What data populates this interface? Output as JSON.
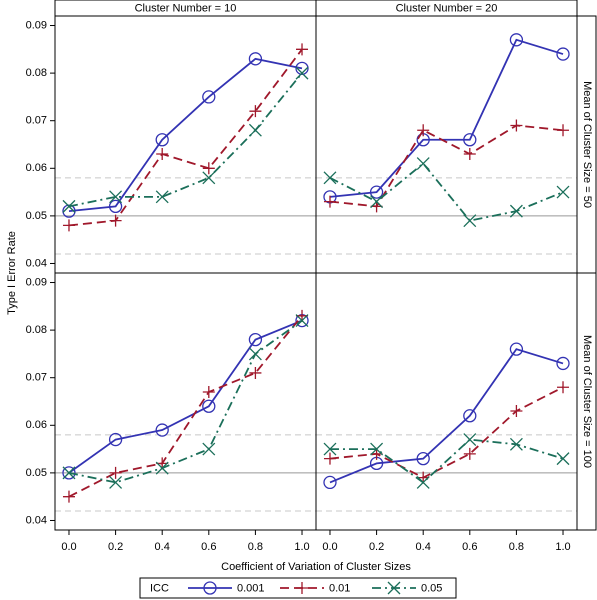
{
  "chart_data": {
    "type": "line",
    "x_label": "Coefficient of Variation of Cluster Sizes",
    "y_label": "Type I Error Rate",
    "legend_title": "ICC",
    "column_headers": [
      "Cluster Number = 10",
      "Cluster Number = 20"
    ],
    "row_headers": [
      "Mean of Cluster Size = 50",
      "Mean of Cluster Size = 100"
    ],
    "x": [
      0,
      0.2,
      0.4,
      0.6,
      0.8,
      1.0
    ],
    "xlim": [
      -0.06,
      1.06
    ],
    "xticks": [
      {
        "value": 0,
        "label": "0.0"
      },
      {
        "value": 0.2,
        "label": "0.2"
      },
      {
        "value": 0.4,
        "label": "0.4"
      },
      {
        "value": 0.6,
        "label": "0.6"
      },
      {
        "value": 0.8,
        "label": "0.8"
      },
      {
        "value": 1.0,
        "label": "1.0"
      }
    ],
    "ylim": [
      0.038,
      0.092
    ],
    "yticks": [
      0.04,
      0.05,
      0.06,
      0.07,
      0.08,
      0.09
    ],
    "reference_lines": [
      {
        "value": 0.05,
        "style": "solid"
      },
      {
        "value": 0.042,
        "style": "dashed"
      },
      {
        "value": 0.058,
        "style": "dashed"
      }
    ],
    "series": [
      {
        "name": "0.001",
        "color": "#3333b3",
        "marker": "circle",
        "dash": "solid"
      },
      {
        "name": "0.01",
        "color": "#a0182b",
        "marker": "plus",
        "dash": "dash"
      },
      {
        "name": "0.05",
        "color": "#1b6f5a",
        "marker": "x",
        "dash": "dashdot"
      }
    ],
    "panels": [
      {
        "values": [
          [
            0.051,
            0.052,
            0.066,
            0.075,
            0.083,
            0.081
          ],
          [
            0.048,
            0.049,
            0.063,
            0.06,
            0.072,
            0.085
          ],
          [
            0.052,
            0.054,
            0.054,
            0.058,
            0.068,
            0.08
          ]
        ]
      },
      {
        "values": [
          [
            0.054,
            0.055,
            0.066,
            0.066,
            0.087,
            0.084
          ],
          [
            0.053,
            0.052,
            0.068,
            0.063,
            0.069,
            0.068
          ],
          [
            0.058,
            0.053,
            0.061,
            0.049,
            0.051,
            0.055
          ]
        ]
      },
      {
        "values": [
          [
            0.05,
            0.057,
            0.059,
            0.064,
            0.078,
            0.082
          ],
          [
            0.045,
            0.05,
            0.052,
            0.067,
            0.071,
            0.083
          ],
          [
            0.05,
            0.048,
            0.051,
            0.055,
            0.075,
            0.082
          ]
        ]
      },
      {
        "values": [
          [
            0.048,
            0.052,
            0.053,
            0.062,
            0.076,
            0.073
          ],
          [
            0.053,
            0.054,
            0.049,
            0.054,
            0.063,
            0.068
          ],
          [
            0.055,
            0.055,
            0.048,
            0.057,
            0.056,
            0.053
          ]
        ]
      }
    ]
  }
}
